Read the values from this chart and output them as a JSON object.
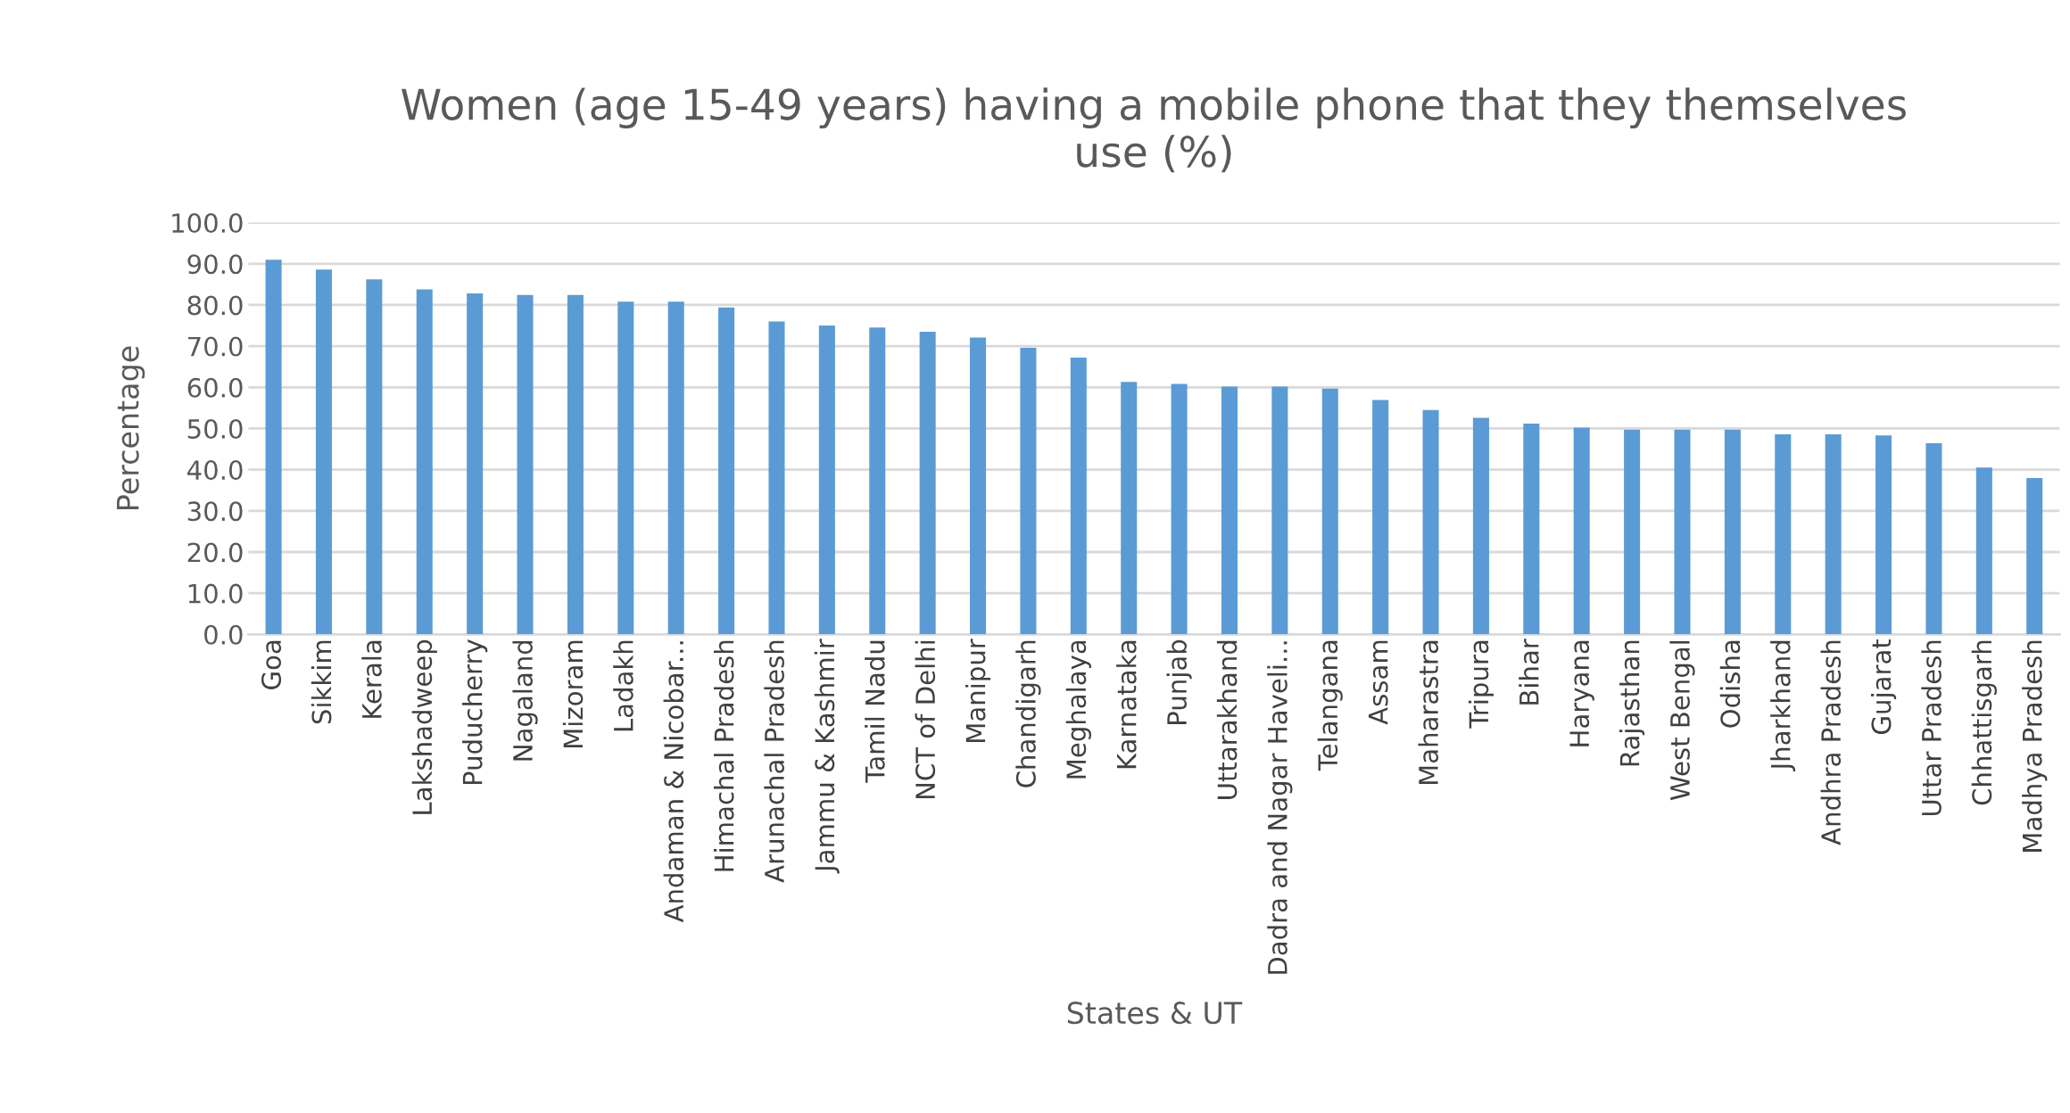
{
  "chart_data": {
    "type": "bar",
    "title": "Women (age 15-49 years) having a mobile phone that they themselves\nuse (%)",
    "xlabel": "States & UT",
    "ylabel": "Percentage",
    "categories": [
      "Goa",
      "Sikkim",
      "Kerala",
      "Lakshadweep",
      "Puducherry",
      "Nagaland",
      "Mizoram",
      "Ladakh",
      "Andaman & Nicobar...",
      "Himachal Pradesh",
      "Arunachal Pradesh",
      "Jammu & Kashmir",
      "Tamil Nadu",
      "NCT of Delhi",
      "Manipur",
      "Chandigarh",
      "Meghalaya",
      "Karnataka",
      "Punjab",
      "Uttarakhand",
      "Dadra and Nagar Haveli...",
      "Telangana",
      "Assam",
      "Maharastra",
      "Tripura",
      "Bihar",
      "Haryana",
      "Rajasthan",
      "West Bengal",
      "Odisha",
      "Jharkhand",
      "Andhra Pradesh",
      "Gujarat",
      "Uttar Pradesh",
      "Chhattisgarh",
      "Madhya Pradesh"
    ],
    "values": [
      91.0,
      88.6,
      86.2,
      83.8,
      82.8,
      82.4,
      82.4,
      80.8,
      80.8,
      79.4,
      76.0,
      75.0,
      74.5,
      73.5,
      72.1,
      69.6,
      67.2,
      61.3,
      60.8,
      60.2,
      60.2,
      59.7,
      56.9,
      54.5,
      52.6,
      51.2,
      50.2,
      49.7,
      49.7,
      49.7,
      48.6,
      48.6,
      48.3,
      46.4,
      40.5,
      38.0
    ],
    "color": "#5b9bd5",
    "ylim": [
      0,
      100
    ],
    "yticks": [
      {
        "value": 0,
        "label": "0.0"
      },
      {
        "value": 10,
        "label": "10.0"
      },
      {
        "value": 20,
        "label": "20.0"
      },
      {
        "value": 30,
        "label": "30.0"
      },
      {
        "value": 40,
        "label": "40.0"
      },
      {
        "value": 50,
        "label": "50.0"
      },
      {
        "value": 60,
        "label": "60.0"
      },
      {
        "value": 70,
        "label": "70.0"
      },
      {
        "value": 80,
        "label": "80.0"
      },
      {
        "value": 90,
        "label": "90.0"
      },
      {
        "value": 100,
        "label": "100.0"
      }
    ],
    "grid": "y",
    "legend": false
  }
}
